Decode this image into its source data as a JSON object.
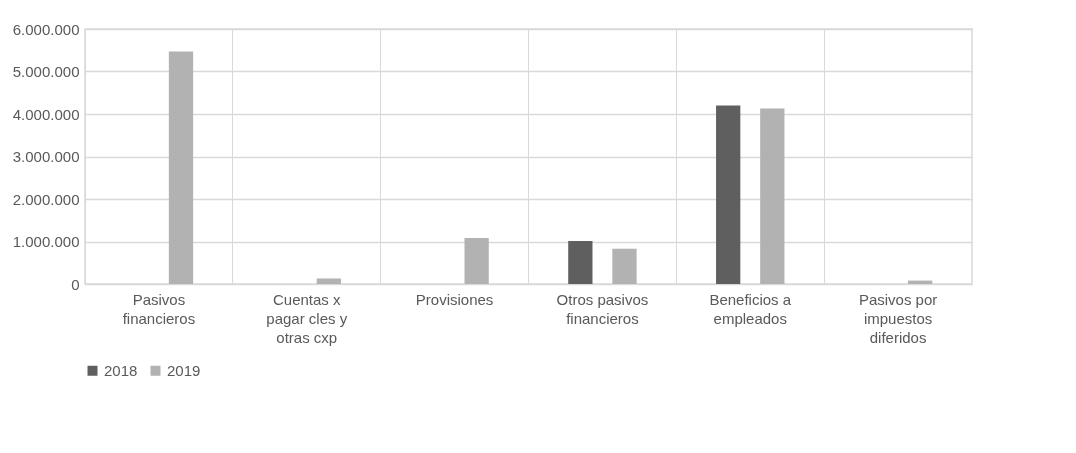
{
  "chart_data": {
    "type": "bar",
    "categories": [
      "Pasivos financieros",
      "Cuentas x pagar cles y otras cxp",
      "Provisiones",
      "Otros pasivos financieros",
      "Beneficios a empleados",
      "Pasivos por impuestos diferidos"
    ],
    "series": [
      {
        "name": "2018",
        "color": "#5f5f5f",
        "values": [
          0,
          0,
          0,
          1010000,
          4200000,
          0
        ]
      },
      {
        "name": "2019",
        "color": "#b2b2b2",
        "values": [
          5470000,
          130000,
          1080000,
          830000,
          4130000,
          80000
        ]
      }
    ],
    "ylim": [
      0,
      6000000
    ],
    "yticks": [
      {
        "value": 0,
        "label": "0"
      },
      {
        "value": 1000000,
        "label": "1.000.000"
      },
      {
        "value": 2000000,
        "label": "2.000.000"
      },
      {
        "value": 3000000,
        "label": "3.000.000"
      },
      {
        "value": 4000000,
        "label": "4.000.000"
      },
      {
        "value": 5000000,
        "label": "5.000.000"
      },
      {
        "value": 6000000,
        "label": "6.000.000"
      }
    ],
    "grid": true,
    "legend": "bottom"
  }
}
